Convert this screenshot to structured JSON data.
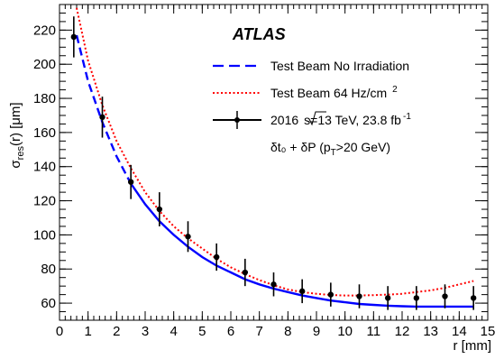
{
  "chart_data": {
    "type": "line",
    "experiment_label": "ATLAS",
    "xlabel": "r [mm]",
    "ylabel_main": "σ",
    "ylabel_sub": "res",
    "ylabel_rest": "(r) [μm]",
    "xlim": [
      0,
      15
    ],
    "ylim": [
      50,
      235
    ],
    "x_ticks": [
      0,
      1,
      2,
      3,
      4,
      5,
      6,
      7,
      8,
      9,
      10,
      11,
      12,
      13,
      14,
      15
    ],
    "y_ticks": [
      60,
      80,
      100,
      120,
      140,
      160,
      180,
      200,
      220
    ],
    "series": [
      {
        "name": "Test Beam No Irradiation",
        "style": "dashed-solid",
        "color": "#0000ff",
        "dashed_until_x": 2.5,
        "x": [
          0.6,
          1.0,
          1.5,
          2.0,
          2.5,
          3.0,
          3.5,
          4.0,
          4.5,
          5.0,
          5.5,
          6.0,
          6.5,
          7.0,
          7.5,
          8.0,
          8.5,
          9.0,
          9.5,
          10.0,
          10.5,
          11.0,
          11.5,
          12.0,
          12.5,
          13.0,
          13.5,
          14.0,
          14.5
        ],
        "y": [
          217,
          190,
          166,
          146,
          130,
          118,
          108,
          100,
          93,
          87,
          82,
          78,
          74,
          71,
          68.5,
          66.5,
          64.5,
          63,
          61.5,
          60.5,
          59.5,
          59,
          58.5,
          58.2,
          58,
          58,
          58,
          58,
          58
        ]
      },
      {
        "name": "Test Beam 64 Hz/cm",
        "name_sup": "2",
        "style": "dotted",
        "color": "#ff0000",
        "x": [
          0.6,
          1.0,
          1.5,
          2.0,
          2.5,
          3.0,
          3.5,
          4.0,
          4.5,
          5.0,
          5.5,
          6.0,
          6.5,
          7.0,
          7.5,
          8.0,
          8.5,
          9.0,
          9.5,
          10.0,
          10.5,
          11.0,
          11.5,
          12.0,
          12.5,
          13.0,
          13.5,
          14.0,
          14.5
        ],
        "y": [
          233,
          202,
          176,
          155,
          139,
          125,
          114,
          105,
          98,
          92,
          86,
          81,
          77,
          73.5,
          70.5,
          68,
          66.5,
          65.5,
          64.8,
          64.5,
          64.5,
          64.7,
          65,
          65.5,
          66.5,
          67.5,
          69,
          71,
          73
        ]
      },
      {
        "name": "2016",
        "name_rest": "s=13 TeV, 23.8 fb",
        "name_sup": "-1",
        "style": "markers-errors",
        "color": "#000000",
        "x": [
          0.5,
          1.5,
          2.5,
          3.5,
          4.5,
          5.5,
          6.5,
          7.5,
          8.5,
          9.5,
          10.5,
          11.5,
          12.5,
          13.5,
          14.5
        ],
        "y": [
          216,
          169,
          131,
          115,
          99,
          87,
          78,
          71,
          67,
          65,
          64,
          63,
          63,
          64,
          63
        ],
        "yerr": [
          12,
          12,
          10,
          10,
          9,
          8,
          8,
          7,
          7,
          7,
          7,
          7,
          7,
          7,
          7
        ]
      }
    ],
    "annotation": "δt₀ + δP (p",
    "annotation_sub": "T",
    "annotation_rest": ">20 GeV)",
    "legend_placement": "top-right"
  }
}
